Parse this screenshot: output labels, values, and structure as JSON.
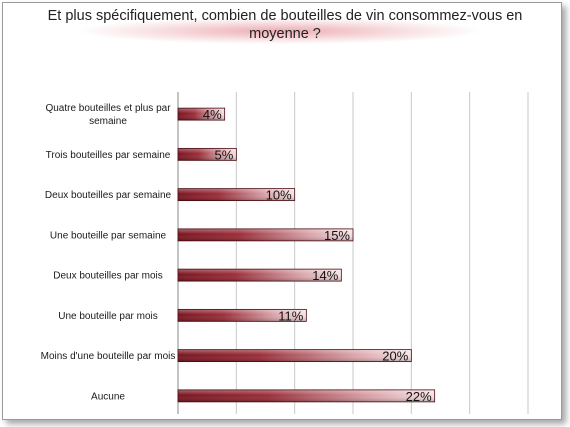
{
  "chart_data": {
    "type": "bar",
    "orientation": "horizontal",
    "title": "Et plus spécifiquement, combien de bouteilles de vin consommez-vous en\nmoyenne ?",
    "categories": [
      "Quatre bouteilles et plus par\nsemaine",
      "Trois bouteilles par semaine",
      "Deux bouteilles par semaine",
      "Une bouteille par semaine",
      "Deux bouteilles par mois",
      "Une bouteille par mois",
      "Moins d'une bouteille par mois",
      "Aucune"
    ],
    "values": [
      4,
      5,
      10,
      15,
      14,
      11,
      20,
      22
    ],
    "data_labels": [
      "4%",
      "5%",
      "10%",
      "15%",
      "14%",
      "11%",
      "20%",
      "22%"
    ],
    "xlim": [
      0,
      30
    ],
    "value_unit": "%",
    "vertical_gridlines": true,
    "legend": "none",
    "bar_color": "#8b1e2a",
    "bar_highlight": "#f3d6d9"
  }
}
